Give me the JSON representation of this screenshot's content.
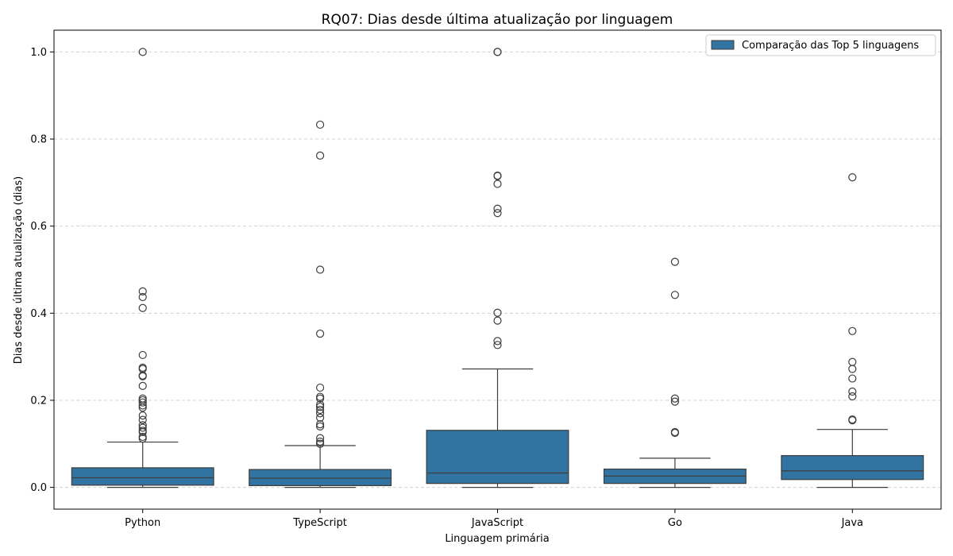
{
  "chart_data": {
    "type": "box",
    "title": "RQ07: Dias desde última atualização por linguagem",
    "xlabel": "Linguagem primária",
    "ylabel": "Dias desde última atualização (dias)",
    "ylim": [
      -0.05,
      1.05
    ],
    "yticks": [
      0.0,
      0.2,
      0.4,
      0.6,
      0.8,
      1.0
    ],
    "ytick_labels": [
      "0.0",
      "0.2",
      "0.4",
      "0.6",
      "0.8",
      "1.0"
    ],
    "grid": "y-dashed",
    "legend_position": "top-right",
    "series": [
      {
        "name": "Comparação das Top 5 linguagens",
        "color": "#3274a1",
        "boxes": [
          {
            "category": "Python",
            "whisker_low": 0.0,
            "q1": 0.005,
            "median": 0.022,
            "q3": 0.045,
            "whisker_high": 0.104,
            "outliers": [
              1.0,
              0.45,
              0.437,
              0.412,
              0.304,
              0.275,
              0.272,
              0.257,
              0.255,
              0.233,
              0.204,
              0.2,
              0.195,
              0.188,
              0.183,
              0.165,
              0.155,
              0.143,
              0.137,
              0.13,
              0.127,
              0.116,
              0.112
            ]
          },
          {
            "category": "TypeScript",
            "whisker_low": 0.0,
            "q1": 0.004,
            "median": 0.021,
            "q3": 0.041,
            "whisker_high": 0.096,
            "outliers": [
              0.833,
              0.762,
              0.5,
              0.353,
              0.229,
              0.208,
              0.204,
              0.19,
              0.185,
              0.178,
              0.17,
              0.16,
              0.145,
              0.14,
              0.113,
              0.105,
              0.1
            ]
          },
          {
            "category": "JavaScript",
            "whisker_low": 0.0,
            "q1": 0.009,
            "median": 0.033,
            "q3": 0.131,
            "whisker_high": 0.272,
            "outliers": [
              1.0,
              1.0,
              0.716,
              0.715,
              0.697,
              0.64,
              0.63,
              0.401,
              0.383,
              0.336,
              0.327
            ]
          },
          {
            "category": "Go",
            "whisker_low": 0.0,
            "q1": 0.009,
            "median": 0.026,
            "q3": 0.042,
            "whisker_high": 0.067,
            "outliers": [
              0.518,
              0.442,
              0.204,
              0.197,
              0.127,
              0.125
            ]
          },
          {
            "category": "Java",
            "whisker_low": 0.0,
            "q1": 0.018,
            "median": 0.038,
            "q3": 0.073,
            "whisker_high": 0.133,
            "outliers": [
              0.712,
              0.359,
              0.288,
              0.272,
              0.25,
              0.22,
              0.209,
              0.156,
              0.154
            ]
          }
        ]
      }
    ],
    "categories": [
      "Python",
      "TypeScript",
      "JavaScript",
      "Go",
      "Java"
    ]
  }
}
